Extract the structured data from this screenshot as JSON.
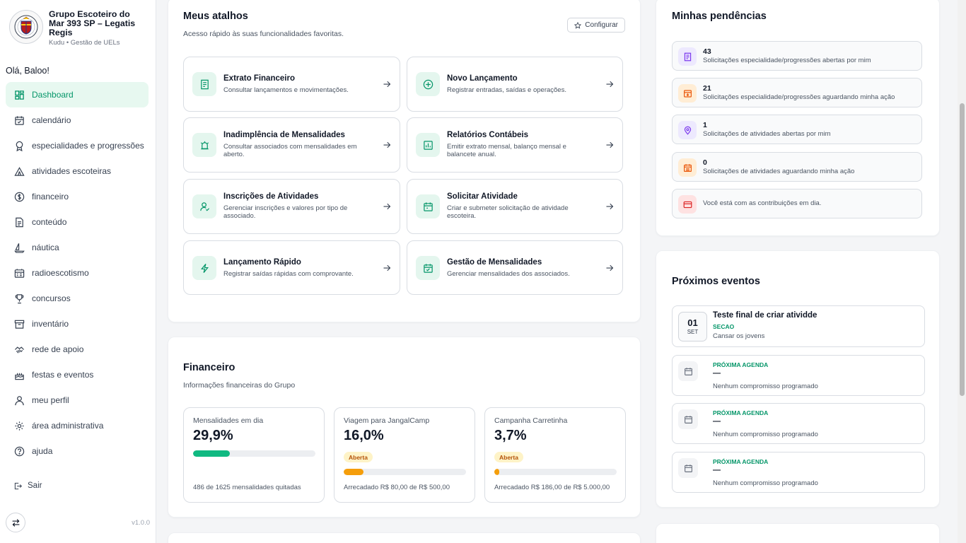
{
  "brand": {
    "name": "Grupo Escoteiro do Mar 393 SP – Legatis Regis",
    "sub": "Kudu • Gestão de UELs"
  },
  "greeting": "Olá, Baloo!",
  "nav": [
    {
      "label": "Dashboard",
      "icon": "dashboard-icon",
      "active": true
    },
    {
      "label": "calendário",
      "icon": "calendar-icon"
    },
    {
      "label": "especialidades e progressões",
      "icon": "badge-icon"
    },
    {
      "label": "atividades escoteiras",
      "icon": "tent-icon"
    },
    {
      "label": "financeiro",
      "icon": "dollar-icon"
    },
    {
      "label": "conteúdo",
      "icon": "document-icon"
    },
    {
      "label": "náutica",
      "icon": "sailboat-icon"
    },
    {
      "label": "radioescotismo",
      "icon": "radio-icon"
    },
    {
      "label": "concursos",
      "icon": "trophy-icon"
    },
    {
      "label": "inventário",
      "icon": "archive-icon"
    },
    {
      "label": "rede de apoio",
      "icon": "handshake-icon"
    },
    {
      "label": "festas e eventos",
      "icon": "cake-icon"
    },
    {
      "label": "meu perfil",
      "icon": "user-icon"
    },
    {
      "label": "área administrativa",
      "icon": "gear-icon"
    },
    {
      "label": "ajuda",
      "icon": "help-icon"
    }
  ],
  "logout": "Sair",
  "version": "v1.0.0",
  "shortcuts": {
    "title": "Meus atalhos",
    "subtitle": "Acesso rápido às suas funcionalidades favoritas.",
    "config_label": "Configurar",
    "items": [
      {
        "title": "Extrato Financeiro",
        "desc": "Consultar lançamentos e movimentações.",
        "icon": "receipt-icon"
      },
      {
        "title": "Novo Lançamento",
        "desc": "Registrar entradas, saídas e operações.",
        "icon": "plus-circle-icon"
      },
      {
        "title": "Inadimplência de Mensalidades",
        "desc": "Consultar associados com mensalidades em aberto.",
        "icon": "alarm-icon"
      },
      {
        "title": "Relatórios Contábeis",
        "desc": "Emitir extrato mensal, balanço mensal e balancete anual.",
        "icon": "chart-icon"
      },
      {
        "title": "Inscrições de Atividades",
        "desc": "Gerenciar inscrições e valores por tipo de associado.",
        "icon": "user-check-icon"
      },
      {
        "title": "Solicitar Atividade",
        "desc": "Criar e submeter solicitação de atividade escoteira.",
        "icon": "calendar-plus-icon"
      },
      {
        "title": "Lançamento Rápido",
        "desc": "Registrar saídas rápidas com comprovante.",
        "icon": "bolt-icon"
      },
      {
        "title": "Gestão de Mensalidades",
        "desc": "Gerenciar mensalidades dos associados.",
        "icon": "calendar-check-icon"
      }
    ]
  },
  "financeiro": {
    "title": "Financeiro",
    "subtitle": "Informações financeiras do Grupo",
    "cards": [
      {
        "label": "Mensalidades em dia",
        "pct": "29,9%",
        "fill": 0.299,
        "color": "#10b981",
        "badge": "",
        "foot": "486 de 1625 mensalidades quitadas"
      },
      {
        "label": "Viagem para JangalCamp",
        "pct": "16,0%",
        "fill": 0.16,
        "color": "#f59e0b",
        "badge": "Aberta",
        "foot": "Arrecadado R$ 80,00 de R$ 500,00"
      },
      {
        "label": "Campanha Carretinha",
        "pct": "3,7%",
        "fill": 0.037,
        "color": "#f59e0b",
        "badge": "Aberta",
        "foot": "Arrecadado R$ 186,00 de R$ 5.000,00"
      }
    ]
  },
  "pendencias": {
    "title": "Minhas pendências",
    "items": [
      {
        "num": "43",
        "text": "Solicitações especialidade/progressões abertas por mim",
        "icon": "list-icon",
        "color": "#7c3aed",
        "bg": "#ede9fe"
      },
      {
        "num": "21",
        "text": "Solicitações especialidade/progressões aguardando minha ação",
        "icon": "inbox-icon",
        "color": "#ea580c",
        "bg": "#ffedd5"
      },
      {
        "num": "1",
        "text": "Solicitações de atividades abertas por mim",
        "icon": "pin-icon",
        "color": "#7c3aed",
        "bg": "#ede9fe"
      },
      {
        "num": "0",
        "text": "Solicitações de atividades aguardando minha ação",
        "icon": "calendar-icon",
        "color": "#ea580c",
        "bg": "#ffedd5"
      },
      {
        "num": "",
        "text": "Você está com as contribuições em dia.",
        "icon": "card-icon",
        "color": "#dc2626",
        "bg": "#fee2e2"
      }
    ]
  },
  "eventos": {
    "title": "Próximos eventos",
    "first": {
      "day": "01",
      "month": "SET",
      "title": "Teste final de criar atividde",
      "tag": "SECAO",
      "desc": "Cansar os jovens"
    },
    "agendas": [
      {
        "tag": "PRÓXIMA AGENDA",
        "dash": "—",
        "desc": "Nenhum compromisso programado"
      },
      {
        "tag": "PRÓXIMA AGENDA",
        "dash": "—",
        "desc": "Nenhum compromisso programado"
      },
      {
        "tag": "PRÓXIMA AGENDA",
        "dash": "—",
        "desc": "Nenhum compromisso programado"
      }
    ]
  },
  "colors": {
    "accent": "#10b981",
    "accent_bg": "#e7f8f0",
    "warning": "#f59e0b"
  }
}
